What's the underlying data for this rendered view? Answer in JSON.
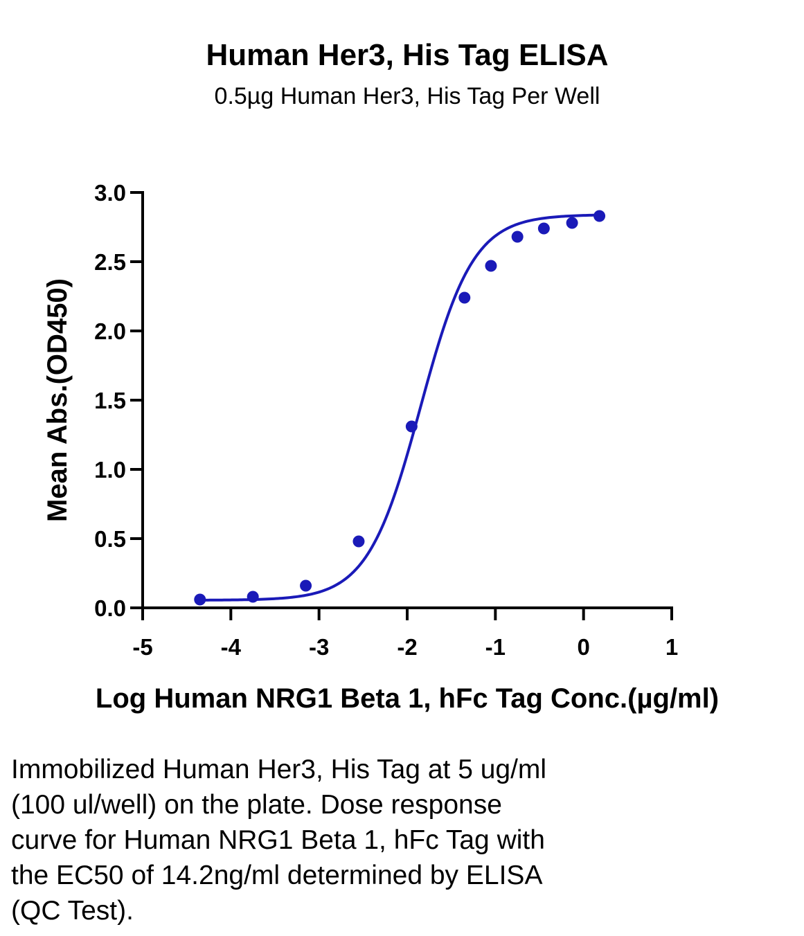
{
  "chart_data": {
    "type": "scatter",
    "title": "Human Her3, His Tag ELISA",
    "subtitle": "0.5µg Human Her3, His Tag Per Well",
    "xlabel": "Log Human NRG1 Beta 1, hFc Tag Conc.(µg/ml)",
    "ylabel": "Mean Abs.(OD450)",
    "xlim": [
      -5,
      1
    ],
    "ylim": [
      0,
      3.0
    ],
    "x_ticks": [
      "-5",
      "-4",
      "-3",
      "-2",
      "-1",
      "0",
      "1"
    ],
    "y_ticks": [
      "0.0",
      "0.5",
      "1.0",
      "1.5",
      "2.0",
      "2.5",
      "3.0"
    ],
    "grid": false,
    "color": "#1a1ab8",
    "fit": "4-parameter logistic curve",
    "series": [
      {
        "x": [
          -4.35,
          -3.75,
          -3.15,
          -2.55,
          -1.95,
          -1.35,
          -1.05,
          -0.75,
          -0.45,
          -0.13,
          0.18
        ],
        "y": [
          0.06,
          0.08,
          0.16,
          0.48,
          1.31,
          2.24,
          2.47,
          2.68,
          2.74,
          2.78,
          2.83
        ]
      }
    ]
  },
  "caption": "Immobilized Human Her3, His Tag at 5 ug/ml\n(100 ul/well) on the plate. Dose response\ncurve for Human NRG1 Beta 1, hFc Tag with\nthe EC50 of 14.2ng/ml determined by ELISA\n(QC Test)."
}
